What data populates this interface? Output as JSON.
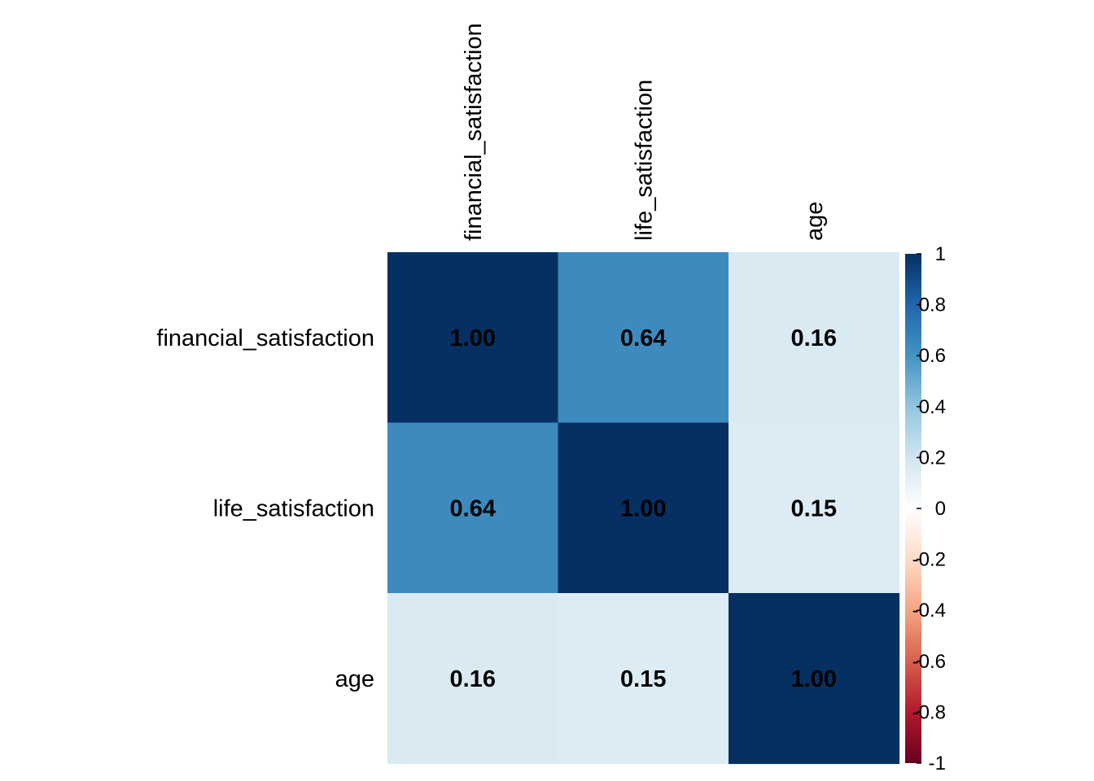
{
  "chart_data": {
    "type": "heatmap",
    "variables": [
      "financial_satisfaction",
      "life_satisfaction",
      "age"
    ],
    "matrix": [
      [
        1.0,
        0.64,
        0.16
      ],
      [
        0.64,
        1.0,
        0.15
      ],
      [
        0.16,
        0.15,
        1.0
      ]
    ],
    "cell_labels": [
      [
        "1.00",
        "0.64",
        "0.16"
      ],
      [
        "0.64",
        "1.00",
        "0.15"
      ],
      [
        "0.16",
        "0.15",
        "1.00"
      ]
    ],
    "color_scale": {
      "range": [
        -1,
        1
      ],
      "ticks": [
        1,
        0.8,
        0.6,
        0.4,
        0.2,
        0,
        -0.2,
        -0.4,
        -0.6,
        -0.8,
        -1
      ],
      "tick_labels": [
        "1",
        "0.8",
        "0.6",
        "0.4",
        "0.2",
        "0",
        "-0.2",
        "-0.4",
        "-0.6",
        "-0.8",
        "-1"
      ],
      "stops": [
        "#67001F",
        "#B2182B",
        "#D6604D",
        "#F4A582",
        "#FDDBC7",
        "#FFFFFF",
        "#D1E5F0",
        "#92C5DE",
        "#4393C3",
        "#2166AC",
        "#053061"
      ]
    },
    "legend_position": "right",
    "grid": false
  }
}
